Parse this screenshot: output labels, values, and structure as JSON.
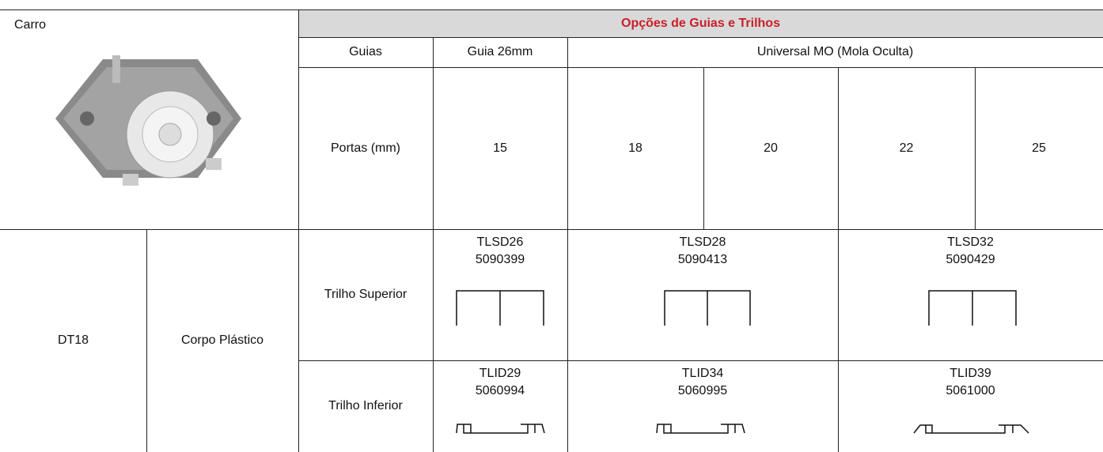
{
  "carro": "Carro",
  "table": {
    "title": "Opções de Guias e Trilhos",
    "guias_row": [
      "Guias",
      "Guia 26mm",
      "Universal MO (Mola Oculta)"
    ],
    "portas_row": [
      "Portas (mm)",
      "15",
      "18",
      "20",
      "22",
      "25"
    ],
    "model": "DT18",
    "body": "Corpo Plástico",
    "superior": {
      "label": "Trilho Superior",
      "items": [
        [
          "TLSD26",
          "5090399"
        ],
        [
          "TLSD28",
          "5090413"
        ],
        [
          "TLSD32",
          "5090429"
        ]
      ]
    },
    "inferior": {
      "label": "Trilho Inferior",
      "items": [
        [
          "TLID29",
          "5060994"
        ],
        [
          "TLID34",
          "5060995"
        ],
        [
          "TLID39",
          "5061000"
        ]
      ]
    }
  }
}
